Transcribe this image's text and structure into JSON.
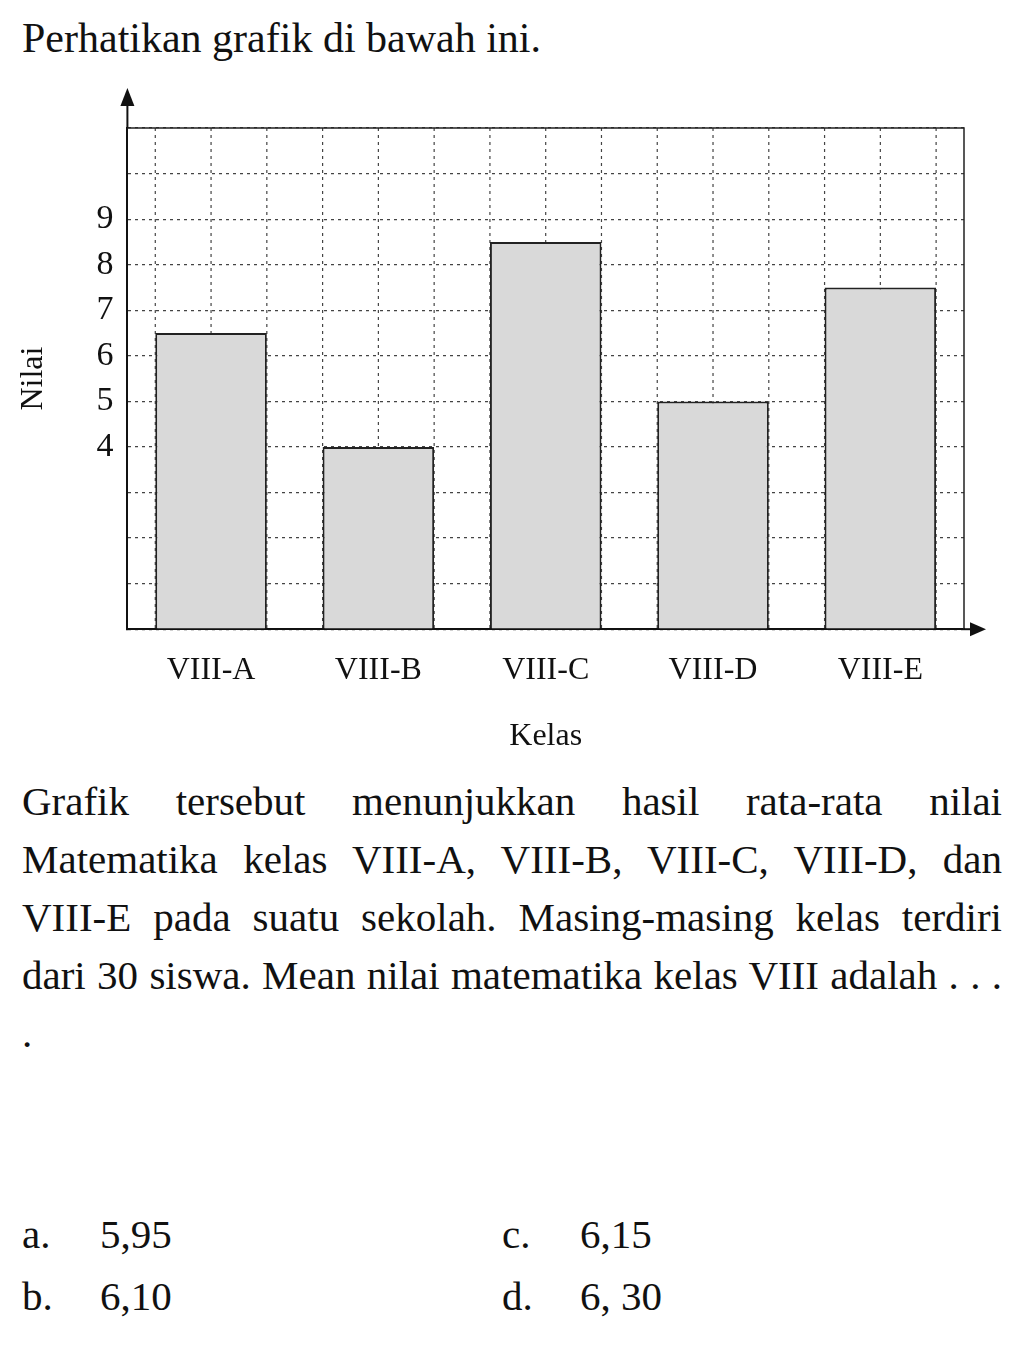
{
  "header": {
    "title": "Perhatikan grafik di bawah ini."
  },
  "chart_data": {
    "type": "bar",
    "x_label": "Kelas",
    "y_label": "Nilai",
    "categories": [
      "VIII-A",
      "VIII-B",
      "VIII-C",
      "VIII-D",
      "VIII-E"
    ],
    "values": [
      6.5,
      4,
      8.5,
      5,
      7.5
    ],
    "color": "#d9d9d9",
    "ylim": [
      0,
      11
    ],
    "yticks": [
      4,
      5,
      6,
      7,
      8,
      9
    ],
    "grid": true
  },
  "question": "Grafik tersebut menunjukkan hasil rata-rata nilai Matematika kelas VIII-A, VIII-B, VIII-C, VIII-D, dan VIII-E pada suatu sekolah. Masing-masing kelas terdiri dari 30 siswa. Mean nilai matematika kelas VIII adalah . . . .",
  "options": [
    {
      "label": "a.",
      "text": "5,95"
    },
    {
      "label": "b.",
      "text": "6,10"
    },
    {
      "label": "c.",
      "text": "6,15"
    },
    {
      "label": "d.",
      "text": "6, 30"
    }
  ]
}
